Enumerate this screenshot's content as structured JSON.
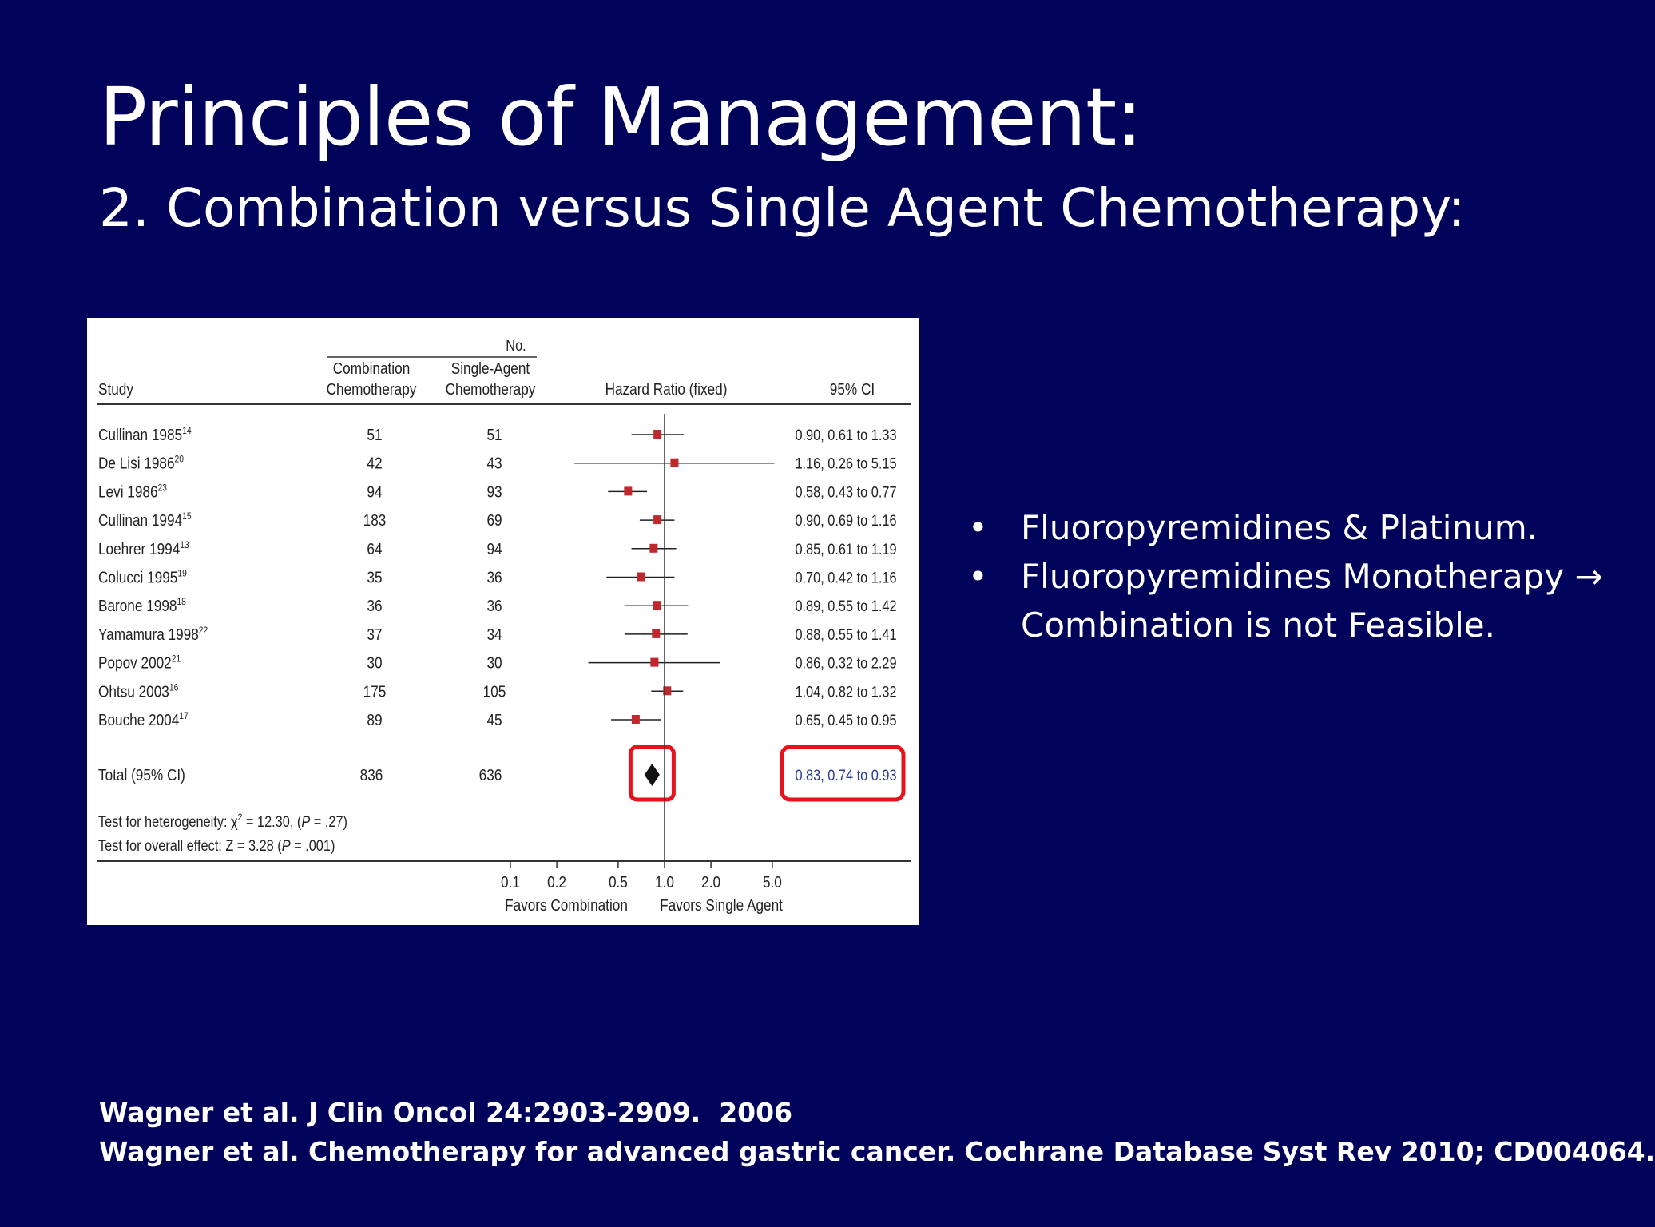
{
  "slide": {
    "title": "Principles of Management:",
    "subtitle": "2. Combination versus Single Agent Chemotherapy:",
    "bullets": [
      {
        "marker": "•",
        "text": "Fluoropyremidines & Platinum."
      },
      {
        "marker": "•",
        "text": "Fluoropyremidines Monotherapy → Combination is not Feasible."
      }
    ],
    "references": [
      "Wagner et al. J Clin Oncol 24:2903-2909.  2006",
      "Wagner et al. Chemotherapy for advanced gastric cancer. Cochrane Database Syst Rev 2010; CD004064."
    ],
    "colors": {
      "background": "#01025a",
      "highlight_box": "#e8121a",
      "marker": "#c0282e",
      "total_ci_text": "#2a3a9a"
    }
  },
  "chart_data": {
    "type": "forest",
    "headers": {
      "no_group": "No.",
      "study": "Study",
      "combination": [
        "Combination",
        "Chemotherapy"
      ],
      "single": [
        "Single-Agent",
        "Chemotherapy"
      ],
      "hr": "Hazard Ratio (fixed)",
      "ci": "95% CI"
    },
    "studies": [
      {
        "name": "Cullinan 1985",
        "ref": "14",
        "combination": 51,
        "single": 51,
        "hr": 0.9,
        "lo": 0.61,
        "hi": 1.33,
        "ci_text": "0.90, 0.61 to 1.33"
      },
      {
        "name": "De Lisi 1986",
        "ref": "20",
        "combination": 42,
        "single": 43,
        "hr": 1.16,
        "lo": 0.26,
        "hi": 5.15,
        "ci_text": "1.16, 0.26 to 5.15"
      },
      {
        "name": "Levi 1986",
        "ref": "23",
        "combination": 94,
        "single": 93,
        "hr": 0.58,
        "lo": 0.43,
        "hi": 0.77,
        "ci_text": "0.58, 0.43 to 0.77"
      },
      {
        "name": "Cullinan 1994",
        "ref": "15",
        "combination": 183,
        "single": 69,
        "hr": 0.9,
        "lo": 0.69,
        "hi": 1.16,
        "ci_text": "0.90, 0.69 to 1.16"
      },
      {
        "name": "Loehrer 1994",
        "ref": "13",
        "combination": 64,
        "single": 94,
        "hr": 0.85,
        "lo": 0.61,
        "hi": 1.19,
        "ci_text": "0.85, 0.61 to 1.19"
      },
      {
        "name": "Colucci 1995",
        "ref": "19",
        "combination": 35,
        "single": 36,
        "hr": 0.7,
        "lo": 0.42,
        "hi": 1.16,
        "ci_text": "0.70, 0.42 to 1.16"
      },
      {
        "name": "Barone 1998",
        "ref": "18",
        "combination": 36,
        "single": 36,
        "hr": 0.89,
        "lo": 0.55,
        "hi": 1.42,
        "ci_text": "0.89, 0.55 to 1.42"
      },
      {
        "name": "Yamamura 1998",
        "ref": "22",
        "combination": 37,
        "single": 34,
        "hr": 0.88,
        "lo": 0.55,
        "hi": 1.41,
        "ci_text": "0.88, 0.55 to 1.41"
      },
      {
        "name": "Popov 2002",
        "ref": "21",
        "combination": 30,
        "single": 30,
        "hr": 0.86,
        "lo": 0.32,
        "hi": 2.29,
        "ci_text": "0.86, 0.32 to 2.29"
      },
      {
        "name": "Ohtsu 2003",
        "ref": "16",
        "combination": 175,
        "single": 105,
        "hr": 1.04,
        "lo": 0.82,
        "hi": 1.32,
        "ci_text": "1.04, 0.82 to 1.32"
      },
      {
        "name": "Bouche 2004",
        "ref": "17",
        "combination": 89,
        "single": 45,
        "hr": 0.65,
        "lo": 0.45,
        "hi": 0.95,
        "ci_text": "0.65, 0.45 to 0.95"
      }
    ],
    "total": {
      "name": "Total (95% CI)",
      "combination": 836,
      "single": 636,
      "hr": 0.83,
      "lo": 0.74,
      "hi": 0.93,
      "ci_text": "0.83, 0.74 to 0.93"
    },
    "tests": {
      "heterogeneity": {
        "prefix": "Test for heterogeneity: ",
        "chi": "χ",
        "sup": "2",
        "rest": " = 12.30, (",
        "p": "P",
        "pval": " = .27)"
      },
      "overall": {
        "prefix": "Test for overall effect: Z = 3.28 (",
        "p": "P",
        "pval": " = .001)"
      }
    },
    "x_axis": {
      "scale": "log",
      "ticks": [
        0.1,
        0.2,
        0.5,
        1.0,
        2.0,
        5.0
      ],
      "tick_labels": [
        "0.1",
        "0.2",
        "0.5",
        "1.0",
        "2.0",
        "5.0"
      ],
      "label_left": "Favors Combination",
      "label_right": "Favors Single Agent"
    }
  }
}
